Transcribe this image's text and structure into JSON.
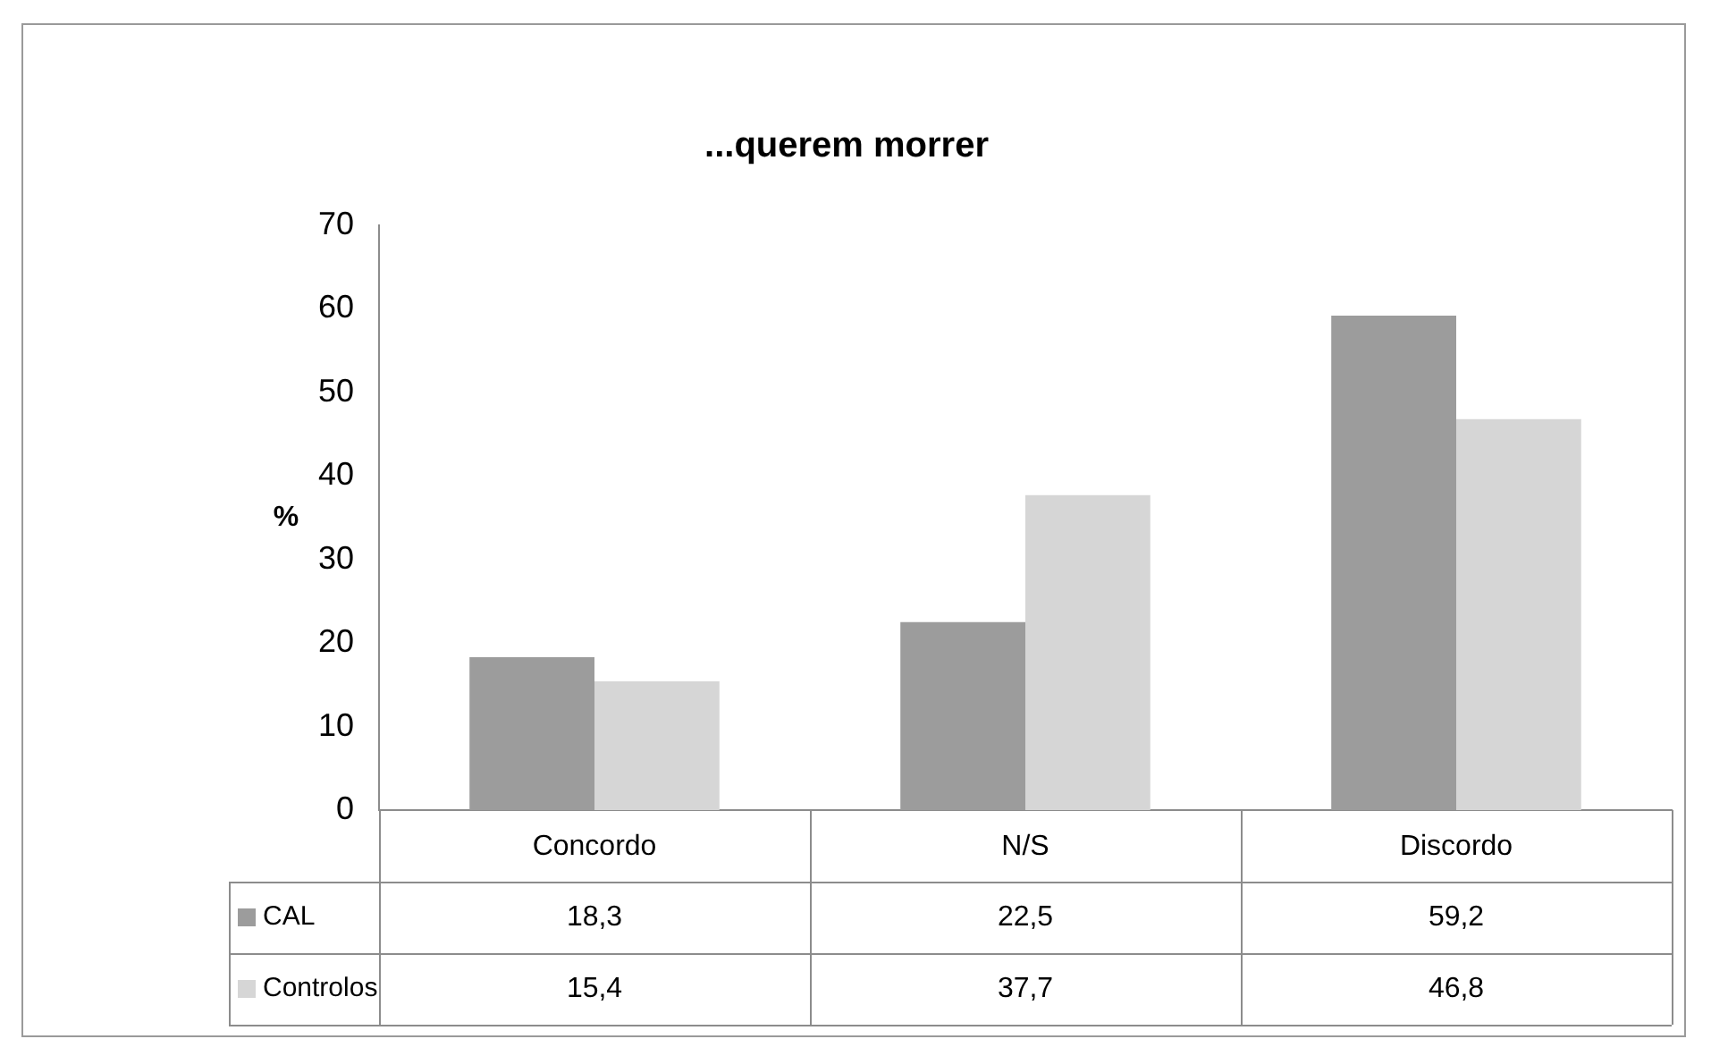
{
  "chart_data": {
    "type": "bar",
    "title": "...querem morrer",
    "ylabel": "%",
    "categories": [
      "Concordo",
      "N/S",
      "Discordo"
    ],
    "series": [
      {
        "name": "CAL",
        "color": "#9c9c9c",
        "values": [
          18.3,
          22.5,
          59.2
        ],
        "value_labels": [
          "18,3",
          "22,5",
          "59,2"
        ]
      },
      {
        "name": "Controlos",
        "color": "#d6d6d6",
        "values": [
          15.4,
          37.7,
          46.8
        ],
        "value_labels": [
          "15,4",
          "37,7",
          "46,8"
        ]
      }
    ],
    "ylim": [
      0,
      70
    ],
    "yticks": [
      0,
      10,
      20,
      30,
      40,
      50,
      60,
      70
    ],
    "grid": false,
    "legend": "bottom"
  }
}
